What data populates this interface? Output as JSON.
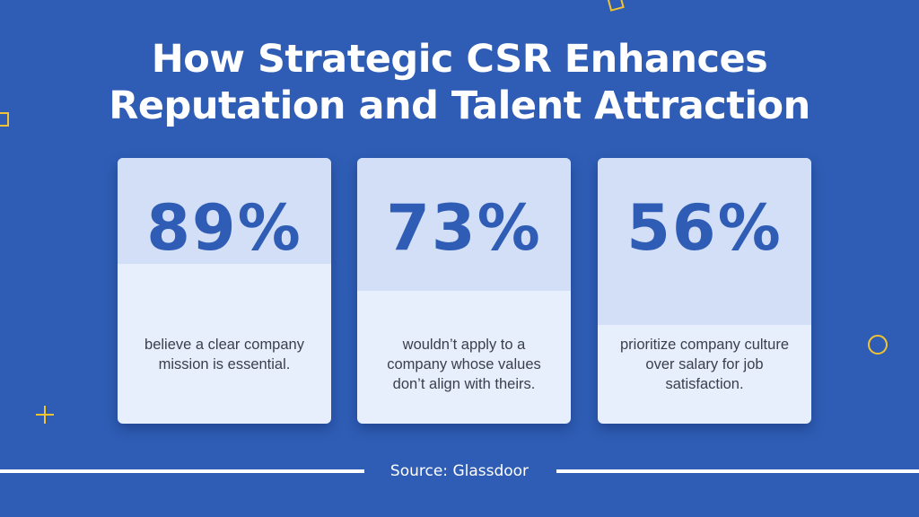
{
  "title_line1": "How Strategic CSR Enhances",
  "title_line2": "Reputation and Talent Attraction",
  "cards": [
    {
      "value": "89%",
      "desc": [
        "believe a clear company",
        "mission is essential."
      ]
    },
    {
      "value": "73%",
      "desc": [
        "wouldn’t apply to a",
        "company whose values",
        "don’t align with theirs."
      ]
    },
    {
      "value": "56%",
      "desc": [
        "prioritize company culture",
        "over salary for job",
        "satisfaction."
      ]
    }
  ],
  "source": "Source: Glassdoor",
  "colors": {
    "background": "#2f5db5",
    "card": "#e7effc",
    "card_top": "#d3dff6",
    "stat": "#2f5db5",
    "accent": "#f2c230"
  },
  "decorations": [
    "square-outline-icon",
    "square-outline-icon",
    "circle-outline-icon",
    "plus-icon"
  ]
}
